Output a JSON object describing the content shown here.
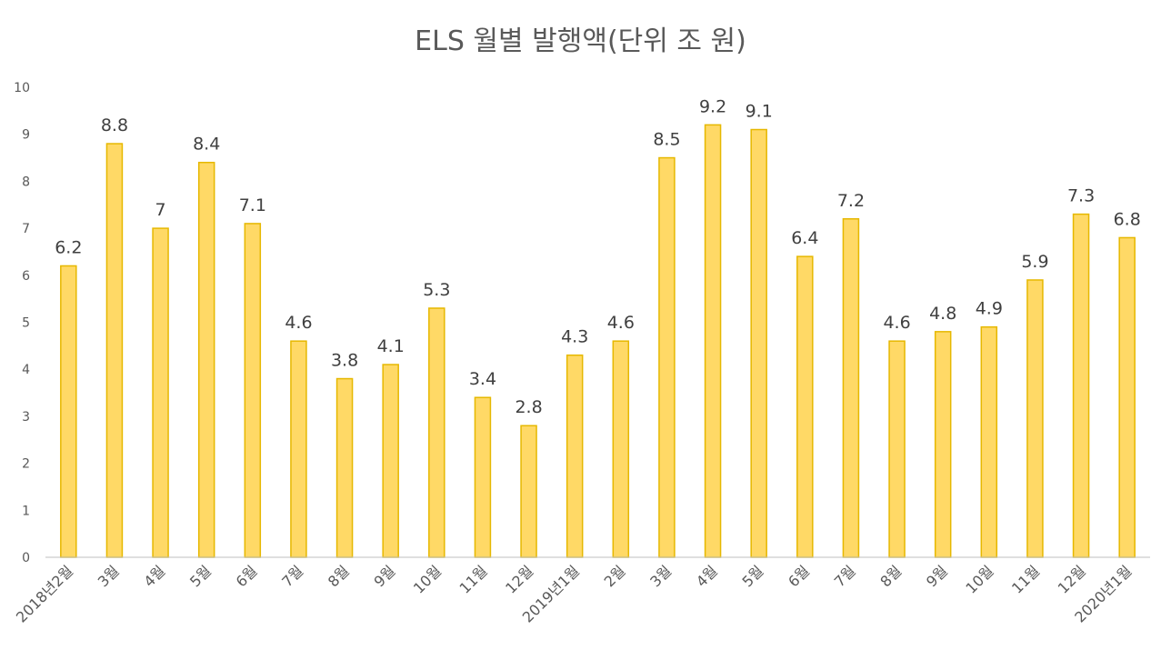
{
  "chart_data": {
    "type": "bar",
    "title": "ELS 월별 발행액(단위 조 원)",
    "xlabel": "",
    "ylabel": "",
    "ylim": [
      0,
      10
    ],
    "yticks": [
      0,
      1,
      2,
      3,
      4,
      5,
      6,
      7,
      8,
      9,
      10
    ],
    "grid": false,
    "legend": "none",
    "categories": [
      "2018년2월",
      "3월",
      "4월",
      "5월",
      "6월",
      "7월",
      "8월",
      "9월",
      "10월",
      "11월",
      "12월",
      "2019년1월",
      "2월",
      "3월",
      "4월",
      "5월",
      "6월",
      "7월",
      "8월",
      "9월",
      "10월",
      "11월",
      "12월",
      "2020년1월"
    ],
    "values": [
      6.2,
      8.8,
      7,
      8.4,
      7.1,
      4.6,
      3.8,
      4.1,
      5.3,
      3.4,
      2.8,
      4.3,
      4.6,
      8.5,
      9.2,
      9.1,
      6.4,
      7.2,
      4.6,
      4.8,
      4.9,
      5.9,
      7.3,
      6.8
    ],
    "bar_color": "#FFD966",
    "bar_edge_color": "#E6B800",
    "axis_color": "#BFBFBF"
  }
}
